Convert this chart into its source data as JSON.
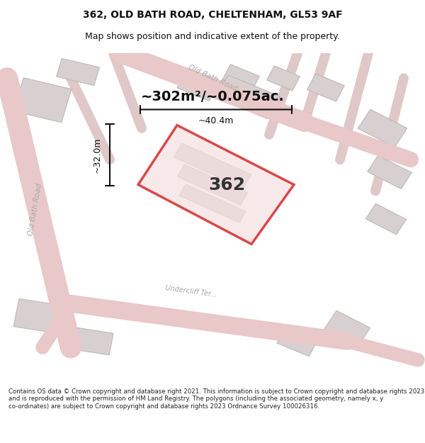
{
  "title_line1": "362, OLD BATH ROAD, CHELTENHAM, GL53 9AF",
  "title_line2": "Map shows position and indicative extent of the property.",
  "area_text": "~302m²/~0.075ac.",
  "label_362": "362",
  "dim_vertical": "~32.0m",
  "dim_horizontal": "~40.4m",
  "footer_text": "Contains OS data © Crown copyright and database right 2021. This information is subject to Crown copyright and database rights 2023 and is reproduced with the permission of HM Land Registry. The polygons (including the associated geometry, namely x, y co-ordinates) are subject to Crown copyright and database rights 2023 Ordnance Survey 100026316.",
  "bg_color": "#f5f0f0",
  "map_bg": "#f0eeee",
  "road_color": "#e8c8c8",
  "property_fill": "#f5e8e8",
  "property_outline": "#cc0000",
  "building_color": "#d8d0d0",
  "dim_line_color": "#111111",
  "text_color": "#111111",
  "label_color": "#aaaaaa",
  "street_label_color": "#aaaaaa"
}
